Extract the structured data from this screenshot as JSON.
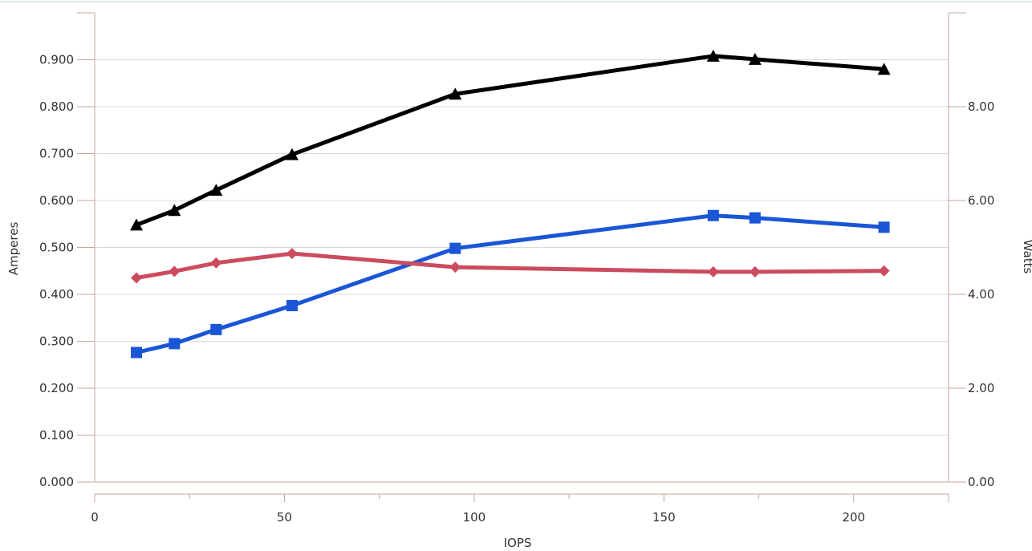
{
  "chart_data": {
    "type": "line",
    "xlabel": "IOPS",
    "ylabel": "Amperes",
    "y2label": "Watts",
    "xlim": [
      0,
      225
    ],
    "ylim": [
      0,
      1.0
    ],
    "y2lim": [
      0,
      10
    ],
    "grid": true,
    "x_ticks": [
      "0",
      "50",
      "100",
      "150",
      "200"
    ],
    "x_tick_values": [
      0,
      50,
      100,
      150,
      200
    ],
    "y_ticks": [
      "0.000",
      "0.100",
      "0.200",
      "0.300",
      "0.400",
      "0.500",
      "0.600",
      "0.700",
      "0.800",
      "0.900"
    ],
    "y_tick_values": [
      0,
      0.1,
      0.2,
      0.3,
      0.4,
      0.5,
      0.6,
      0.7,
      0.8,
      0.9
    ],
    "y2_ticks": [
      "0.00",
      "2.00",
      "4.00",
      "6.00",
      "8.00"
    ],
    "y2_tick_values": [
      0,
      2,
      4,
      6,
      8
    ],
    "x": [
      11,
      21,
      32,
      52,
      95,
      163,
      174,
      208
    ],
    "series": [
      {
        "axis": "right",
        "marker": "triangle",
        "color": "#000000",
        "values": [
          5.48,
          5.79,
          6.22,
          6.98,
          8.27,
          9.08,
          9.01,
          8.8
        ]
      },
      {
        "axis": "right",
        "marker": "square",
        "color": "#1a56d6",
        "values": [
          2.76,
          2.95,
          3.25,
          3.76,
          4.98,
          5.68,
          5.63,
          5.43
        ]
      },
      {
        "axis": "left",
        "marker": "diamond",
        "color": "#cc4b5f",
        "values": [
          0.435,
          0.449,
          0.467,
          0.487,
          0.458,
          0.448,
          0.448,
          0.45
        ]
      }
    ]
  }
}
